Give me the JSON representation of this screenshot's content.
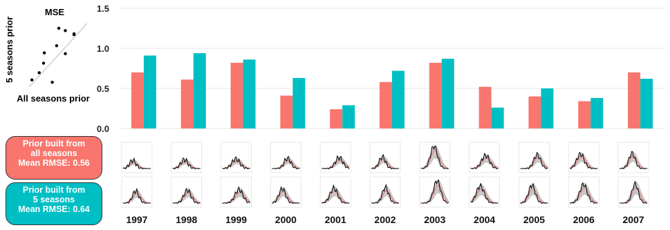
{
  "colors": {
    "all_seasons": "#F8766D",
    "five_seasons": "#00BFC4",
    "ribbon": "#bdbdbd",
    "diag": "#d9d9d9"
  },
  "inset": {
    "title": "MSE",
    "xlabel": "All seasons prior",
    "ylabel": "5 seasons prior",
    "points": [
      [
        0.7,
        0.91
      ],
      [
        0.61,
        0.94
      ],
      [
        0.82,
        0.86
      ],
      [
        0.41,
        0.63
      ],
      [
        0.24,
        0.29
      ],
      [
        0.58,
        0.72
      ],
      [
        0.82,
        0.87
      ],
      [
        0.52,
        0.26
      ],
      [
        0.4,
        0.5
      ],
      [
        0.34,
        0.38
      ],
      [
        0.7,
        0.62
      ]
    ]
  },
  "legend": {
    "all": {
      "line1": "Prior built from",
      "line2": "all seasons",
      "line3": "Mean RMSE: 0.56"
    },
    "five": {
      "line1": "Prior built from",
      "line2": "5 seasons",
      "line3": "Mean RMSE: 0.64"
    }
  },
  "chart_data": {
    "type": "bar",
    "categories": [
      "1997",
      "1998",
      "1999",
      "2000",
      "2001",
      "2002",
      "2003",
      "2004",
      "2005",
      "2006",
      "2007"
    ],
    "series": [
      {
        "values": [
          0.7,
          0.61,
          0.82,
          0.41,
          0.24,
          0.58,
          0.82,
          0.52,
          0.4,
          0.34,
          0.7
        ]
      },
      {
        "values": [
          0.91,
          0.94,
          0.86,
          0.63,
          0.29,
          0.72,
          0.87,
          0.26,
          0.5,
          0.38,
          0.62
        ]
      }
    ],
    "ylim": [
      0,
      1.5
    ],
    "yticks": [
      "0.0",
      "0.5",
      "1.0",
      "1.5"
    ],
    "grid": true
  }
}
